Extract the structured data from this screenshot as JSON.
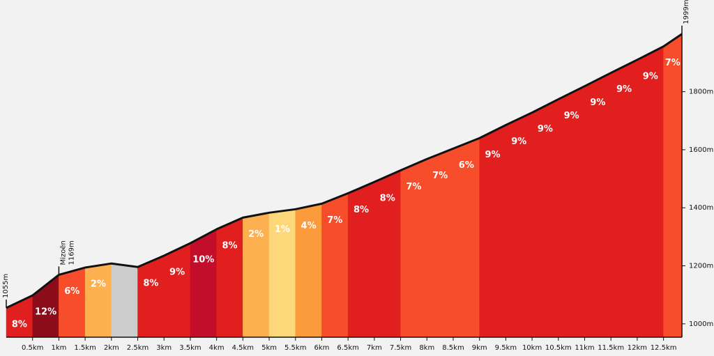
{
  "chart_data": {
    "type": "area",
    "x": [
      0,
      0.5,
      1,
      1.5,
      2,
      2.5,
      3,
      3.5,
      4,
      4.5,
      5,
      5.5,
      6,
      6.5,
      7,
      7.5,
      8,
      8.5,
      9,
      9.5,
      10,
      10.5,
      11,
      11.5,
      12,
      12.5,
      12.85
    ],
    "elevation": [
      1055,
      1098,
      1169,
      1194,
      1208,
      1196,
      1235,
      1278,
      1326,
      1366,
      1383,
      1395,
      1414,
      1450,
      1489,
      1529,
      1568,
      1604,
      1640,
      1685,
      1728,
      1774,
      1819,
      1865,
      1910,
      1956,
      1999
    ],
    "grade": [
      8,
      12,
      6,
      2,
      null,
      8,
      9,
      10,
      8,
      2,
      1,
      4,
      7,
      8,
      8,
      7,
      7,
      6,
      9,
      9,
      9,
      9,
      9,
      9,
      9,
      7
    ],
    "grade_labels": [
      "8%",
      "12%",
      "6%",
      "2%",
      null,
      "8%",
      "9%",
      "10%",
      "8%",
      "2%",
      "1%",
      "4%",
      "7%",
      "8%",
      "8%",
      "7%",
      "7%",
      "6%",
      "9%",
      "9%",
      "9%",
      "9%",
      "9%",
      "9%",
      "9%",
      "7%"
    ],
    "colors": [
      "#e21f1f",
      "#8c0c1c",
      "#f74d2a",
      "#fcb04f",
      "#cccccc",
      "#e21f1f",
      "#e21f1f",
      "#c20d2b",
      "#e21f1f",
      "#fcb04f",
      "#fdd87a",
      "#fb9b3b",
      "#f74d2a",
      "#e21f1f",
      "#e21f1f",
      "#f74d2a",
      "#f74d2a",
      "#f74d2a",
      "#e21f1f",
      "#e21f1f",
      "#e21f1f",
      "#e21f1f",
      "#e21f1f",
      "#e21f1f",
      "#e21f1f",
      "#f74d2a"
    ],
    "line_color": "#111111",
    "xlim": [
      0,
      12.85
    ],
    "ylim": [
      954,
      2116
    ],
    "xticks": [
      {
        "value": 0.5,
        "label": "0.5km"
      },
      {
        "value": 1,
        "label": "1km"
      },
      {
        "value": 1.5,
        "label": "1.5km"
      },
      {
        "value": 2,
        "label": "2km"
      },
      {
        "value": 2.5,
        "label": "2.5km"
      },
      {
        "value": 3,
        "label": "3km"
      },
      {
        "value": 3.5,
        "label": "3.5km"
      },
      {
        "value": 4,
        "label": "4km"
      },
      {
        "value": 4.5,
        "label": "4.5km"
      },
      {
        "value": 5,
        "label": "5km"
      },
      {
        "value": 5.5,
        "label": "5.5km"
      },
      {
        "value": 6,
        "label": "6km"
      },
      {
        "value": 6.5,
        "label": "6.5km"
      },
      {
        "value": 7,
        "label": "7km"
      },
      {
        "value": 7.5,
        "label": "7.5km"
      },
      {
        "value": 8,
        "label": "8km"
      },
      {
        "value": 8.5,
        "label": "8.5km"
      },
      {
        "value": 9,
        "label": "9km"
      },
      {
        "value": 9.5,
        "label": "9.5km"
      },
      {
        "value": 10,
        "label": "10km"
      },
      {
        "value": 10.5,
        "label": "10.5km"
      },
      {
        "value": 11,
        "label": "11km"
      },
      {
        "value": 11.5,
        "label": "11.5km"
      },
      {
        "value": 12,
        "label": "12km"
      },
      {
        "value": 12.5,
        "label": "12.5km"
      }
    ],
    "yticks": [
      {
        "value": 1000,
        "label": "1000m"
      },
      {
        "value": 1200,
        "label": "1200m"
      },
      {
        "value": 1400,
        "label": "1400m"
      },
      {
        "value": 1600,
        "label": "1600m"
      },
      {
        "value": 1800,
        "label": "1800m"
      }
    ],
    "annotations": [
      {
        "x": 0,
        "y": 1055,
        "lines": [
          "1055m"
        ]
      },
      {
        "x": 1,
        "y": 1169,
        "lines": [
          "Mizoën",
          "1169m"
        ]
      },
      {
        "x": 12.85,
        "y": 1999,
        "lines": [
          "1999m"
        ]
      }
    ]
  }
}
